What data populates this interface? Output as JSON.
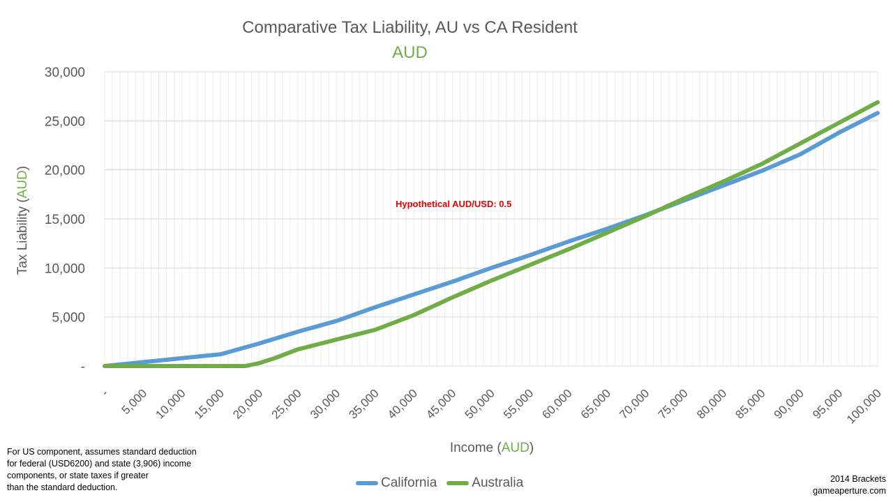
{
  "chart_data": {
    "type": "line",
    "title": "Comparative Tax Liability, AU vs CA Resident",
    "subtitle": "AUD",
    "ylabel_prefix": "Tax Liability (",
    "ylabel_unit": "AUD",
    "ylabel_suffix": ")",
    "xlabel_prefix": "Income (",
    "xlabel_unit": "AUD",
    "xlabel_suffix": ")",
    "ylim": [
      0,
      30000
    ],
    "xlim": [
      0,
      100000
    ],
    "y_ticks": [
      0,
      5000,
      10000,
      15000,
      20000,
      25000,
      30000
    ],
    "y_tick_labels": [
      "-",
      "5,000",
      "10,000",
      "15,000",
      "20,000",
      "25,000",
      "30,000"
    ],
    "x_ticks": [
      0,
      5000,
      10000,
      15000,
      20000,
      25000,
      30000,
      35000,
      40000,
      45000,
      50000,
      55000,
      60000,
      65000,
      70000,
      75000,
      80000,
      85000,
      90000,
      95000,
      100000
    ],
    "x_tick_labels": [
      "-",
      "5,000",
      "10,000",
      "15,000",
      "20,000",
      "25,000",
      "30,000",
      "35,000",
      "40,000",
      "45,000",
      "50,000",
      "55,000",
      "60,000",
      "65,000",
      "70,000",
      "75,000",
      "80,000",
      "85,000",
      "90,000",
      "95,000",
      "100,000"
    ],
    "grid": true,
    "legend_position": "bottom",
    "annotation": "Hypothetical AUD/USD: 0.5",
    "series": [
      {
        "name": "California",
        "color": "#5b9bd5",
        "x": [
          0,
          5000,
          10000,
          15000,
          20000,
          25000,
          30000,
          35000,
          40000,
          45000,
          50000,
          55000,
          60000,
          65000,
          70000,
          75000,
          80000,
          85000,
          90000,
          95000,
          100000
        ],
        "y": [
          0,
          400,
          800,
          1200,
          2300,
          3500,
          4600,
          6000,
          7300,
          8600,
          10000,
          11300,
          12700,
          14000,
          15400,
          16900,
          18400,
          19900,
          21600,
          23800,
          25800
        ]
      },
      {
        "name": "Australia",
        "color": "#70ad47",
        "x": [
          0,
          5000,
          10000,
          15000,
          18200,
          20000,
          22000,
          25000,
          30000,
          35000,
          37000,
          40000,
          45000,
          50000,
          55000,
          60000,
          65000,
          70000,
          75000,
          80000,
          85000,
          90000,
          95000,
          100000
        ],
        "y": [
          0,
          0,
          0,
          0,
          0,
          300,
          800,
          1700,
          2700,
          3700,
          4300,
          5200,
          7000,
          8700,
          10300,
          11900,
          13600,
          15300,
          17100,
          18800,
          20600,
          22700,
          24800,
          26900
        ]
      }
    ]
  },
  "footnote": {
    "lines": [
      "For US component,  assumes standard deduction",
      "for federal (USD6200) and state (3,906) income",
      "components,  or state taxes if greater",
      "than the  standard deduction."
    ]
  },
  "credit": {
    "line1": "2014 Brackets",
    "line2": "gameaperture.com"
  }
}
